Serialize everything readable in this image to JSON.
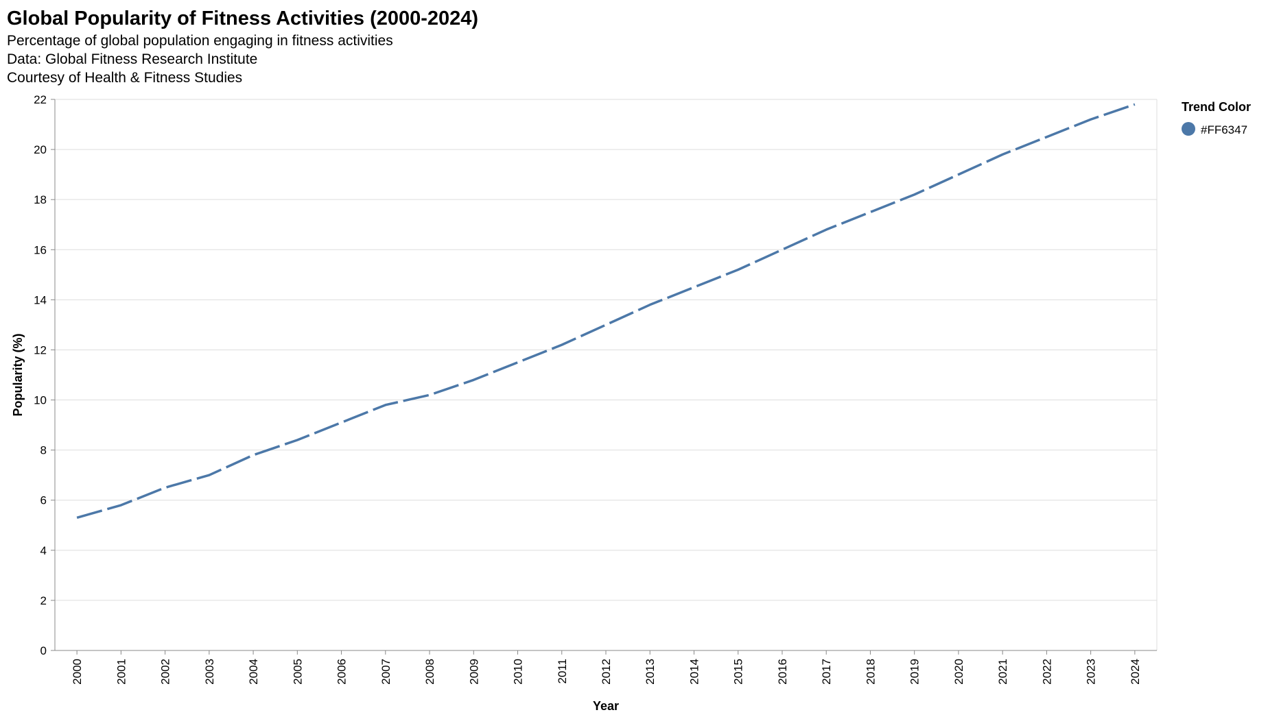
{
  "chart_data": {
    "type": "line",
    "title": "Global Popularity of Fitness Activities (2000-2024)",
    "subtitle": [
      "Percentage of global population engaging in fitness activities",
      "Data: Global Fitness Research Institute",
      "Courtesy of Health & Fitness Studies"
    ],
    "xlabel": "Year",
    "ylabel": "Popularity (%)",
    "ylim": [
      0,
      22
    ],
    "y_ticks": [
      0,
      2,
      4,
      6,
      8,
      10,
      12,
      14,
      16,
      18,
      20,
      22
    ],
    "x": [
      "2000",
      "2001",
      "2002",
      "2003",
      "2004",
      "2005",
      "2006",
      "2007",
      "2008",
      "2009",
      "2010",
      "2011",
      "2012",
      "2013",
      "2014",
      "2015",
      "2016",
      "2017",
      "2018",
      "2019",
      "2020",
      "2021",
      "2022",
      "2023",
      "2024"
    ],
    "series": [
      {
        "name": "#FF6347",
        "values": [
          5.3,
          5.8,
          6.5,
          7.0,
          7.8,
          8.4,
          9.1,
          9.8,
          10.2,
          10.8,
          11.5,
          12.2,
          13.0,
          13.8,
          14.5,
          15.2,
          16.0,
          16.8,
          17.5,
          18.2,
          19.0,
          19.8,
          20.5,
          21.2,
          21.8
        ],
        "color": "#4c78a8",
        "dashed": true
      }
    ],
    "grid": true,
    "legend": {
      "title": "Trend Color",
      "placement": "top-right"
    }
  }
}
